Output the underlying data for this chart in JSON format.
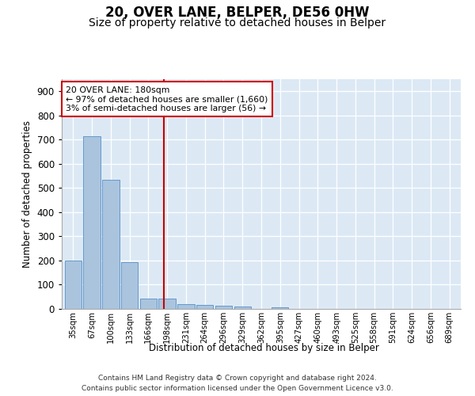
{
  "title": "20, OVER LANE, BELPER, DE56 0HW",
  "subtitle": "Size of property relative to detached houses in Belper",
  "xlabel": "Distribution of detached houses by size in Belper",
  "ylabel": "Number of detached properties",
  "categories": [
    "35sqm",
    "67sqm",
    "100sqm",
    "133sqm",
    "166sqm",
    "198sqm",
    "231sqm",
    "264sqm",
    "296sqm",
    "329sqm",
    "362sqm",
    "395sqm",
    "427sqm",
    "460sqm",
    "493sqm",
    "525sqm",
    "558sqm",
    "591sqm",
    "624sqm",
    "656sqm",
    "689sqm"
  ],
  "values": [
    200,
    715,
    535,
    193,
    42,
    42,
    20,
    15,
    12,
    10,
    0,
    8,
    0,
    0,
    0,
    0,
    0,
    0,
    0,
    0,
    0
  ],
  "bar_color": "#aac4de",
  "bar_edge_color": "#6699cc",
  "vline_x_idx": 4.82,
  "vline_color": "#cc0000",
  "annotation_line1": "20 OVER LANE: 180sqm",
  "annotation_line2": "← 97% of detached houses are smaller (1,660)",
  "annotation_line3": "3% of semi-detached houses are larger (56) →",
  "annotation_box_color": "#ffffff",
  "annotation_box_edge": "#cc0000",
  "ylim": [
    0,
    950
  ],
  "yticks": [
    0,
    100,
    200,
    300,
    400,
    500,
    600,
    700,
    800,
    900
  ],
  "background_color": "#dce9f5",
  "footer_line1": "Contains HM Land Registry data © Crown copyright and database right 2024.",
  "footer_line2": "Contains public sector information licensed under the Open Government Licence v3.0.",
  "title_fontsize": 12,
  "subtitle_fontsize": 10,
  "bar_width": 0.9
}
